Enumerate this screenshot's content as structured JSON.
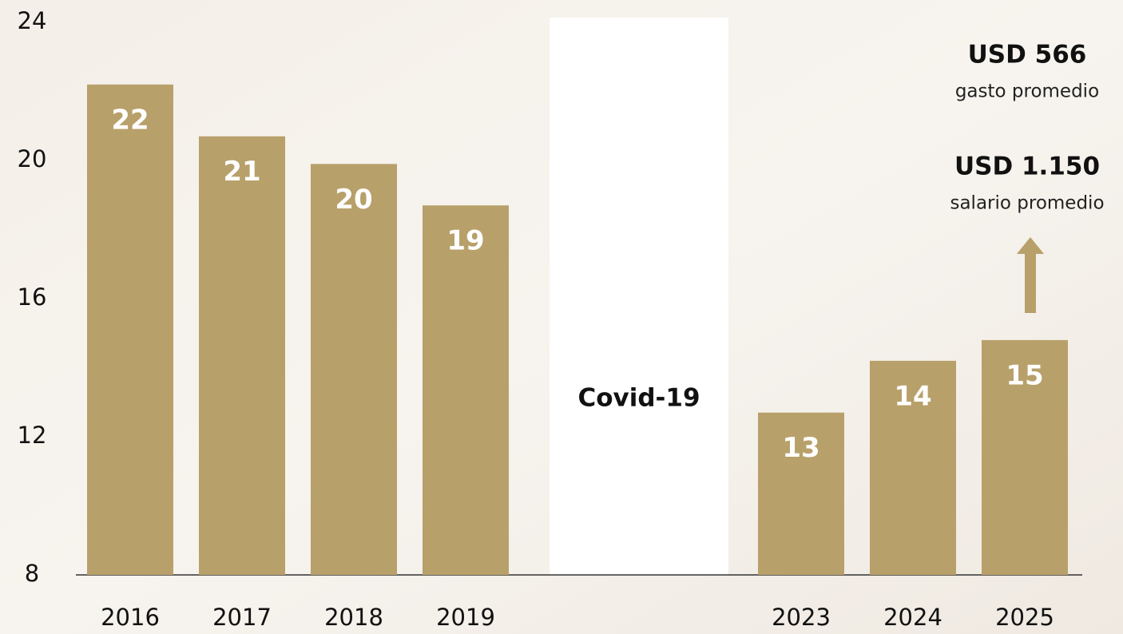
{
  "chart_data": {
    "type": "bar",
    "categories": [
      "2016",
      "2017",
      "2018",
      "2019",
      null,
      null,
      "2023",
      "2024",
      "2025"
    ],
    "values": [
      22.2,
      20.7,
      19.9,
      18.7,
      null,
      null,
      12.7,
      14.2,
      14.8
    ],
    "value_labels": [
      "22",
      "21",
      "20",
      "19",
      null,
      null,
      "13",
      "14",
      "15"
    ],
    "color": "#b8a06a",
    "ylim": [
      8,
      24
    ],
    "yticks": [
      8,
      12,
      16,
      20,
      24
    ],
    "grid": false,
    "annotations": [
      "USD 566",
      "gasto promedio",
      "USD 1.150",
      "salario promedio",
      "Covid-19"
    ]
  }
}
